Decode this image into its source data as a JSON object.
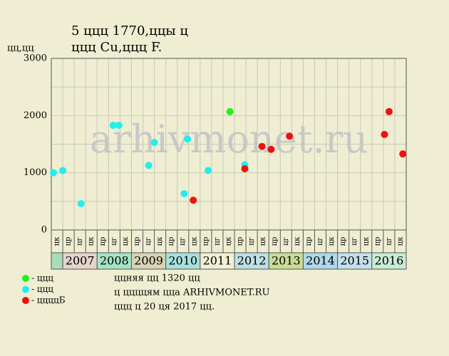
{
  "chart_data": {
    "type": "scatter",
    "title": "5 ццц 1770,ццы ц",
    "subtitle": "ццц Cu,ццц F.",
    "y_label": "цц,цц",
    "watermark": "arhivmonet.ru",
    "xlim": [
      0,
      31
    ],
    "ylim": [
      0,
      3000
    ],
    "yticks": [
      0,
      1000,
      2000,
      3000
    ],
    "minor_yticks": [
      500,
      1500,
      2500
    ],
    "grid": true,
    "column_labels": [
      "цк",
      "цр",
      "цг",
      "цк",
      "цр",
      "цг",
      "цк",
      "цр",
      "цг",
      "цк",
      "цр",
      "цг",
      "цк",
      "цр",
      "цг",
      "цк",
      "цр",
      "цг",
      "цк",
      "цр",
      "цг",
      "цк",
      "цр",
      "цг",
      "цк",
      "цр",
      "цг",
      "цк",
      "цр",
      "цг",
      "цк"
    ],
    "years": [
      null,
      "2007",
      "2008",
      "2009",
      "2010",
      "2011",
      "2012",
      "2013",
      "2014",
      "2015",
      "2016"
    ],
    "year_spans": [
      1,
      3,
      3,
      3,
      3,
      3,
      3,
      3,
      3,
      3,
      3
    ],
    "year_colors": [
      "#a8dcb8",
      "#e4d4cc",
      "#a4e4c4",
      "#d8d4b4",
      "#a8e0dc",
      "#f2f0d4",
      "#bce0e4",
      "#c8dc98",
      "#b0d8e8",
      "#c4e0ec",
      "#c8ecd4"
    ],
    "series": [
      {
        "name": "- ццц",
        "color": "#22ee22",
        "x": [
          15.6
        ],
        "values": [
          2070
        ]
      },
      {
        "name": "- ццц",
        "color": "#22eeee",
        "x": [
          0.19,
          1.0,
          2.6,
          5.4,
          5.9,
          8.5,
          9.0,
          11.6,
          11.9,
          13.7,
          16.9
        ],
        "values": [
          1000,
          1040,
          460,
          1830,
          1830,
          1130,
          1530,
          635,
          1590,
          1040,
          1140
        ]
      },
      {
        "name": "- ццццБ",
        "color": "#ee1111",
        "x": [
          12.4,
          16.9,
          18.4,
          19.2,
          20.8,
          29.1,
          29.5,
          30.7
        ],
        "values": [
          520,
          1070,
          1460,
          1410,
          1640,
          1670,
          2070,
          1330
        ]
      }
    ],
    "notes": [
      "ццняя цц 1320 цц",
      "ц ццццям цца ARHIVMONET.RU",
      "ццц ц 20 ця 2017 цц."
    ]
  }
}
